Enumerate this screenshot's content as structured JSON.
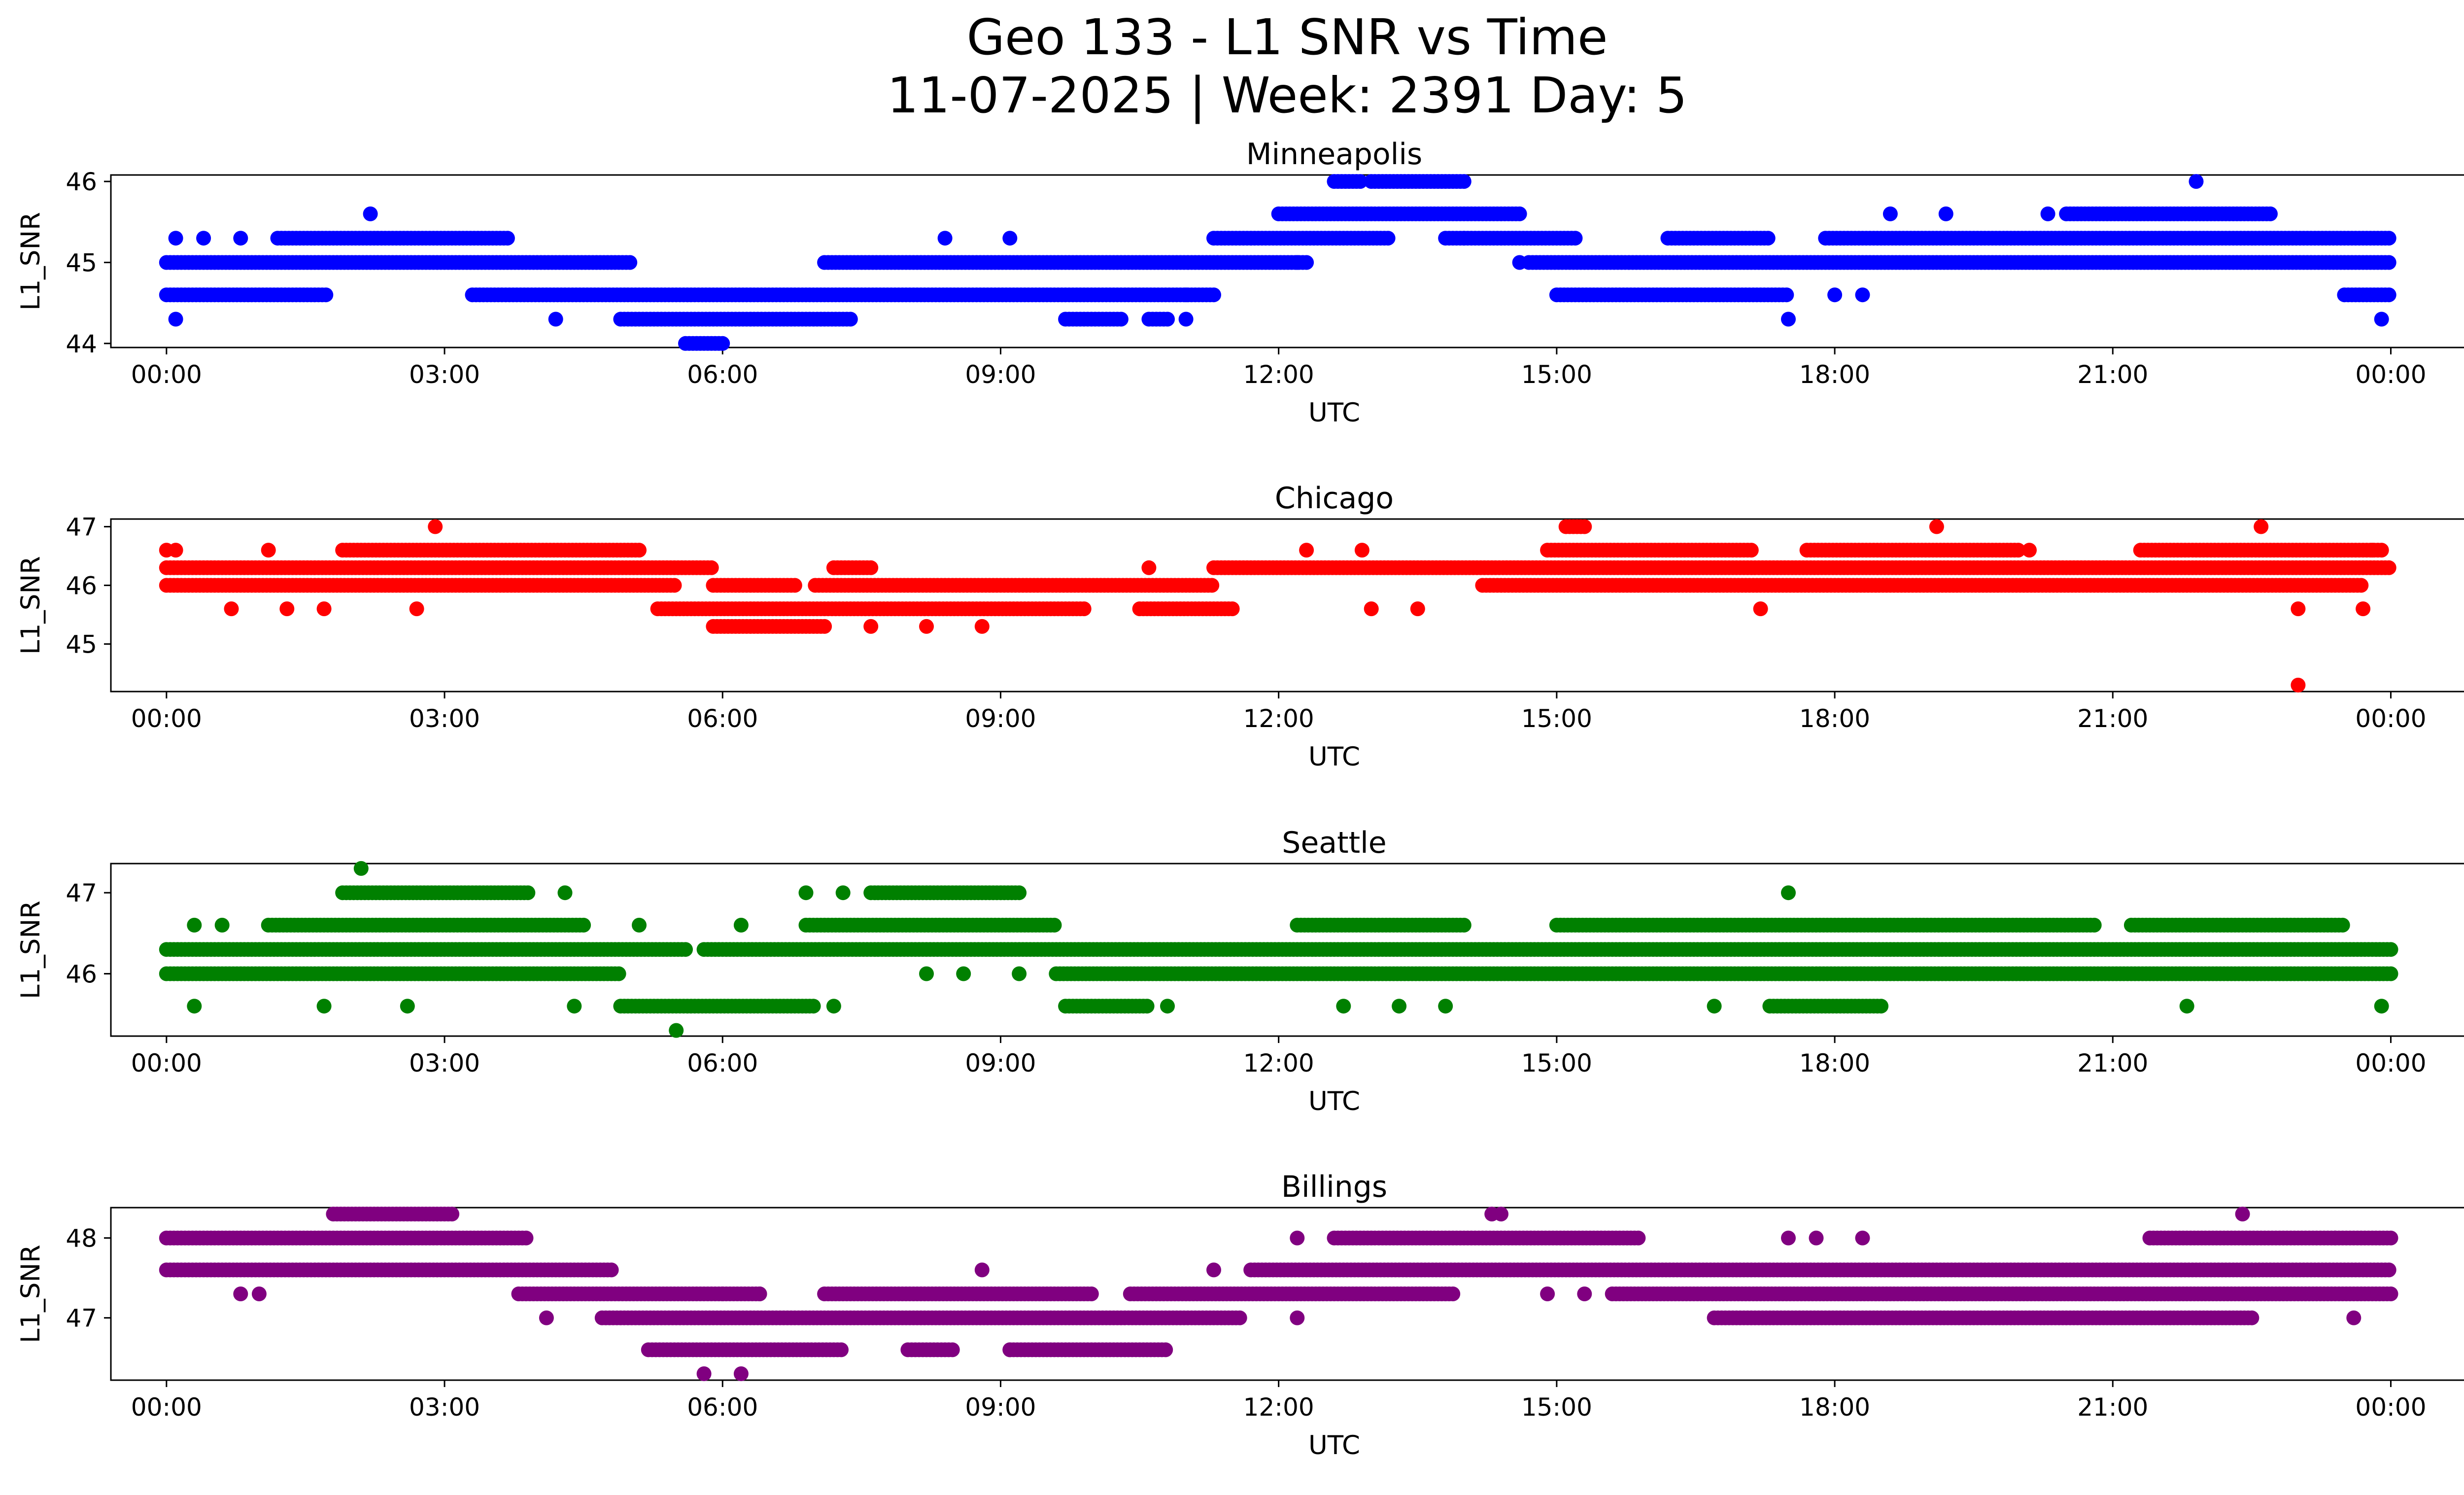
{
  "figure": {
    "title_line1": "Geo 133 - L1 SNR vs Time",
    "title_line2": "11-07-2025 | Week: 2391 Day: 5"
  },
  "chart_data": [
    {
      "type": "scatter",
      "title": "Minneapolis",
      "xlabel": "UTC",
      "ylabel": "L1_SNR",
      "color": "#0000ff",
      "xlim_hours": [
        -0.6,
        25.8
      ],
      "ylim": [
        43.95,
        46.08
      ],
      "yticks": [
        44,
        45,
        46
      ],
      "xticks_hours": [
        0,
        3,
        6,
        9,
        12,
        15,
        18,
        21,
        24
      ],
      "xtick_labels": [
        "00:00",
        "03:00",
        "06:00",
        "09:00",
        "12:00",
        "15:00",
        "18:00",
        "21:00",
        "00:00"
      ],
      "levels": [
        44.0,
        44.3,
        44.6,
        45.0,
        45.3,
        45.6,
        46.0
      ],
      "series": [
        {
          "level": 45.0,
          "ranges": [
            [
              0.0,
              5.0
            ],
            [
              7.1,
              12.3
            ],
            [
              14.7,
              24.0
            ]
          ]
        },
        {
          "level": 44.6,
          "ranges": [
            [
              0.0,
              1.75
            ],
            [
              3.3,
              11.3
            ],
            [
              15.0,
              17.5
            ],
            [
              23.5,
              24.0
            ]
          ]
        },
        {
          "level": 44.3,
          "ranges": [
            [
              4.9,
              7.4
            ],
            [
              9.7,
              10.3
            ],
            [
              10.6,
              10.8
            ]
          ]
        },
        {
          "level": 44.0,
          "ranges": [
            [
              5.6,
              6.0
            ]
          ]
        },
        {
          "level": 45.3,
          "ranges": [
            [
              1.2,
              3.7
            ],
            [
              11.3,
              13.2
            ],
            [
              13.8,
              15.2
            ],
            [
              16.2,
              17.3
            ],
            [
              17.9,
              24.0
            ]
          ]
        },
        {
          "level": 45.6,
          "ranges": [
            [
              12.0,
              14.6
            ],
            [
              20.5,
              22.7
            ]
          ]
        },
        {
          "level": 46.0,
          "ranges": [
            [
              12.6,
              12.9
            ],
            [
              13.0,
              14.0
            ]
          ]
        }
      ],
      "scatter_points": [
        [
          0.1,
          44.3
        ],
        [
          0.1,
          45.3
        ],
        [
          0.4,
          45.3
        ],
        [
          0.8,
          45.3
        ],
        [
          2.2,
          45.6
        ],
        [
          4.2,
          44.3
        ],
        [
          8.4,
          45.3
        ],
        [
          9.1,
          45.3
        ],
        [
          11.0,
          44.3
        ],
        [
          14.0,
          45.3
        ],
        [
          14.6,
          45.0
        ],
        [
          17.5,
          44.3
        ],
        [
          18.0,
          44.6
        ],
        [
          18.3,
          44.6
        ],
        [
          18.6,
          45.6
        ],
        [
          19.2,
          45.6
        ],
        [
          20.3,
          45.6
        ],
        [
          21.9,
          46.0
        ],
        [
          23.9,
          44.3
        ],
        [
          11.0,
          44.6
        ],
        [
          12.2,
          45.0
        ]
      ]
    },
    {
      "type": "scatter",
      "title": "Chicago",
      "xlabel": "UTC",
      "ylabel": "L1_SNR",
      "color": "#ff0000",
      "xlim_hours": [
        -0.6,
        25.8
      ],
      "ylim": [
        44.19,
        47.13
      ],
      "yticks": [
        45,
        46,
        47
      ],
      "xticks_hours": [
        0,
        3,
        6,
        9,
        12,
        15,
        18,
        21,
        24
      ],
      "xtick_labels": [
        "00:00",
        "03:00",
        "06:00",
        "09:00",
        "12:00",
        "15:00",
        "18:00",
        "21:00",
        "00:00"
      ],
      "levels": [
        44.3,
        45.3,
        45.6,
        46.0,
        46.3,
        46.6,
        47.0
      ],
      "series": [
        {
          "level": 46.3,
          "ranges": [
            [
              0.0,
              5.9
            ],
            [
              7.2,
              7.6
            ],
            [
              11.3,
              24.0
            ]
          ]
        },
        {
          "level": 46.0,
          "ranges": [
            [
              0.0,
              5.5
            ],
            [
              5.9,
              6.8
            ],
            [
              7.0,
              11.3
            ],
            [
              14.2,
              23.7
            ]
          ]
        },
        {
          "level": 45.6,
          "ranges": [
            [
              5.3,
              9.9
            ],
            [
              10.5,
              11.5
            ]
          ]
        },
        {
          "level": 45.3,
          "ranges": [
            [
              5.9,
              7.1
            ]
          ]
        },
        {
          "level": 46.6,
          "ranges": [
            [
              1.9,
              5.1
            ],
            [
              14.9,
              17.1
            ],
            [
              17.7,
              20.0
            ],
            [
              21.3,
              23.9
            ]
          ]
        },
        {
          "level": 47.0,
          "ranges": [
            [
              15.1,
              15.3
            ]
          ]
        }
      ],
      "scatter_points": [
        [
          0.0,
          46.6
        ],
        [
          0.1,
          46.6
        ],
        [
          0.7,
          45.6
        ],
        [
          1.1,
          46.6
        ],
        [
          1.3,
          45.6
        ],
        [
          1.7,
          45.6
        ],
        [
          2.7,
          45.6
        ],
        [
          2.9,
          47.0
        ],
        [
          7.6,
          45.3
        ],
        [
          8.2,
          45.3
        ],
        [
          8.8,
          45.3
        ],
        [
          10.6,
          46.3
        ],
        [
          12.3,
          46.6
        ],
        [
          12.9,
          46.6
        ],
        [
          13.0,
          45.6
        ],
        [
          13.5,
          45.6
        ],
        [
          17.2,
          45.6
        ],
        [
          19.1,
          47.0
        ],
        [
          20.1,
          46.6
        ],
        [
          22.6,
          47.0
        ],
        [
          23.0,
          45.6
        ],
        [
          23.0,
          44.3
        ],
        [
          23.7,
          45.6
        ],
        [
          23.8,
          46.6
        ]
      ]
    },
    {
      "type": "scatter",
      "title": "Seattle",
      "xlabel": "UTC",
      "ylabel": "L1_SNR",
      "color": "#008000",
      "xlim_hours": [
        -0.6,
        25.8
      ],
      "ylim": [
        45.23,
        47.36
      ],
      "yticks": [
        46,
        47
      ],
      "xticks_hours": [
        0,
        3,
        6,
        9,
        12,
        15,
        18,
        21,
        24
      ],
      "xtick_labels": [
        "00:00",
        "03:00",
        "06:00",
        "09:00",
        "12:00",
        "15:00",
        "18:00",
        "21:00",
        "00:00"
      ],
      "levels": [
        45.3,
        45.6,
        46.0,
        46.3,
        46.6,
        47.0,
        47.3
      ],
      "series": [
        {
          "level": 46.3,
          "ranges": [
            [
              0.0,
              5.6
            ],
            [
              5.8,
              24.0
            ]
          ]
        },
        {
          "level": 46.0,
          "ranges": [
            [
              0.0,
              4.9
            ],
            [
              9.6,
              24.0
            ]
          ]
        },
        {
          "level": 46.6,
          "ranges": [
            [
              1.1,
              4.5
            ],
            [
              6.9,
              9.6
            ],
            [
              12.2,
              14.0
            ],
            [
              15.0,
              20.8
            ],
            [
              21.2,
              23.5
            ]
          ]
        },
        {
          "level": 47.0,
          "ranges": [
            [
              1.9,
              3.9
            ],
            [
              7.6,
              9.2
            ]
          ]
        },
        {
          "level": 45.6,
          "ranges": [
            [
              4.9,
              7.0
            ],
            [
              9.7,
              10.6
            ],
            [
              17.3,
              18.5
            ]
          ]
        }
      ],
      "scatter_points": [
        [
          0.3,
          45.6
        ],
        [
          0.3,
          46.6
        ],
        [
          0.6,
          46.6
        ],
        [
          1.7,
          45.6
        ],
        [
          2.1,
          47.3
        ],
        [
          2.6,
          45.6
        ],
        [
          4.3,
          47.0
        ],
        [
          4.4,
          45.6
        ],
        [
          5.1,
          46.6
        ],
        [
          5.5,
          45.3
        ],
        [
          6.2,
          46.6
        ],
        [
          6.9,
          47.0
        ],
        [
          7.2,
          45.6
        ],
        [
          7.3,
          47.0
        ],
        [
          8.2,
          46.0
        ],
        [
          8.6,
          46.0
        ],
        [
          9.2,
          46.0
        ],
        [
          10.8,
          45.6
        ],
        [
          12.7,
          45.6
        ],
        [
          13.3,
          45.6
        ],
        [
          13.8,
          45.6
        ],
        [
          16.7,
          45.6
        ],
        [
          17.5,
          47.0
        ],
        [
          21.8,
          45.6
        ],
        [
          23.9,
          45.6
        ]
      ]
    },
    {
      "type": "scatter",
      "title": "Billings",
      "xlabel": "UTC",
      "ylabel": "L1_SNR",
      "color": "#800080",
      "xlim_hours": [
        -0.6,
        25.8
      ],
      "ylim": [
        46.22,
        48.38
      ],
      "yticks": [
        47,
        48
      ],
      "xticks_hours": [
        0,
        3,
        6,
        9,
        12,
        15,
        18,
        21,
        24
      ],
      "xtick_labels": [
        "00:00",
        "03:00",
        "06:00",
        "09:00",
        "12:00",
        "15:00",
        "18:00",
        "21:00",
        "00:00"
      ],
      "levels": [
        46.3,
        46.6,
        47.0,
        47.3,
        47.6,
        48.0,
        48.3
      ],
      "series": [
        {
          "level": 48.0,
          "ranges": [
            [
              0.0,
              3.9
            ],
            [
              12.6,
              15.9
            ],
            [
              21.4,
              24.0
            ]
          ]
        },
        {
          "level": 47.6,
          "ranges": [
            [
              0.0,
              4.8
            ],
            [
              11.7,
              24.0
            ]
          ]
        },
        {
          "level": 47.3,
          "ranges": [
            [
              3.8,
              6.4
            ],
            [
              7.1,
              10.0
            ],
            [
              10.4,
              13.9
            ],
            [
              15.6,
              24.0
            ]
          ]
        },
        {
          "level": 47.0,
          "ranges": [
            [
              4.7,
              11.6
            ],
            [
              16.7,
              22.5
            ]
          ]
        },
        {
          "level": 46.6,
          "ranges": [
            [
              5.2,
              7.3
            ],
            [
              8.0,
              8.5
            ],
            [
              9.1,
              10.8
            ]
          ]
        },
        {
          "level": 48.3,
          "ranges": [
            [
              1.8,
              3.1
            ]
          ]
        }
      ],
      "scatter_points": [
        [
          0.8,
          47.3
        ],
        [
          1.0,
          47.3
        ],
        [
          4.1,
          47.0
        ],
        [
          6.0,
          47.3
        ],
        [
          6.2,
          46.3
        ],
        [
          6.4,
          47.3
        ],
        [
          5.8,
          46.3
        ],
        [
          8.8,
          47.6
        ],
        [
          9.1,
          46.6
        ],
        [
          11.3,
          47.6
        ],
        [
          12.2,
          47.0
        ],
        [
          12.2,
          48.0
        ],
        [
          14.3,
          48.3
        ],
        [
          14.4,
          48.3
        ],
        [
          14.9,
          47.3
        ],
        [
          15.3,
          47.3
        ],
        [
          17.5,
          48.0
        ],
        [
          17.8,
          48.0
        ],
        [
          18.3,
          48.0
        ],
        [
          22.4,
          48.3
        ],
        [
          23.4,
          48.0
        ],
        [
          23.6,
          47.0
        ]
      ]
    }
  ]
}
